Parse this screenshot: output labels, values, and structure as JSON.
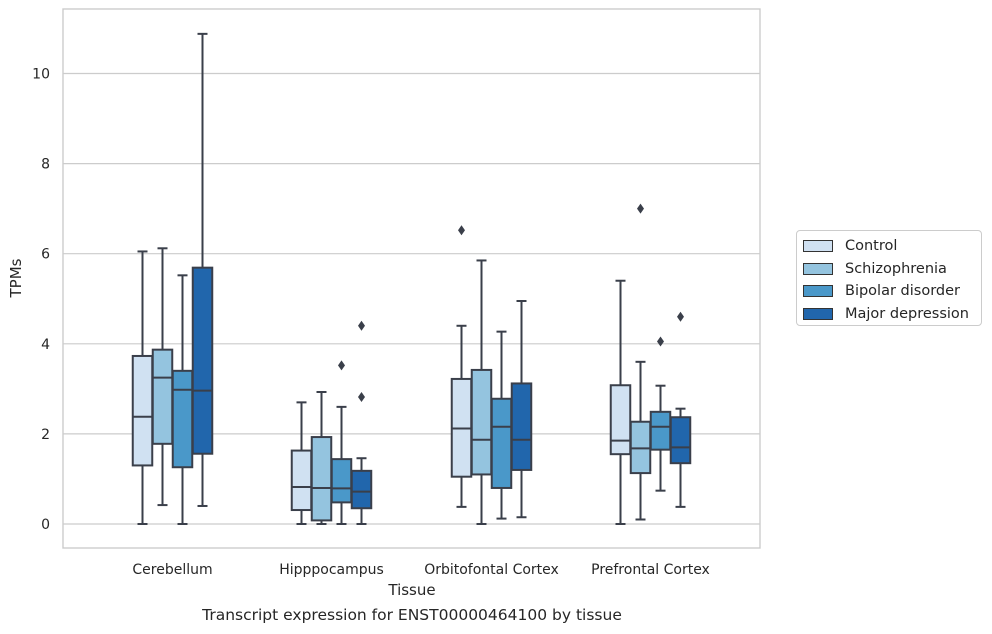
{
  "chart_data": {
    "type": "box",
    "title": "",
    "caption": "Transcript expression for ENST00000464100 by tissue",
    "xlabel": "Tissue",
    "ylabel": "TPMs",
    "ylim": [
      -0.5,
      11.4
    ],
    "yticks": [
      0,
      2,
      4,
      6,
      8,
      10
    ],
    "grid": "horizontal",
    "legend_position": "right",
    "categories": [
      "Cerebellum",
      "Hipppocampus",
      "Orbitofontal Cortex",
      "Prefrontal Cortex"
    ],
    "series": [
      {
        "name": "Control",
        "color": "#d0e1f2",
        "boxes": [
          {
            "whislo": 0.0,
            "q1": 1.3,
            "med": 2.38,
            "q3": 3.73,
            "whishi": 6.05,
            "fliers": []
          },
          {
            "whislo": 0.0,
            "q1": 0.31,
            "med": 0.82,
            "q3": 1.63,
            "whishi": 2.7,
            "fliers": []
          },
          {
            "whislo": 0.38,
            "q1": 1.05,
            "med": 2.12,
            "q3": 3.22,
            "whishi": 4.4,
            "fliers": [
              6.52
            ]
          },
          {
            "whislo": 0.0,
            "q1": 1.55,
            "med": 1.85,
            "q3": 3.08,
            "whishi": 5.4,
            "fliers": []
          }
        ]
      },
      {
        "name": "Schizophrenia",
        "color": "#94c4df",
        "boxes": [
          {
            "whislo": 0.42,
            "q1": 1.78,
            "med": 3.25,
            "q3": 3.87,
            "whishi": 6.12,
            "fliers": []
          },
          {
            "whislo": 0.0,
            "q1": 0.08,
            "med": 0.8,
            "q3": 1.93,
            "whishi": 2.93,
            "fliers": []
          },
          {
            "whislo": 0.0,
            "q1": 1.1,
            "med": 1.87,
            "q3": 3.42,
            "whishi": 5.85,
            "fliers": []
          },
          {
            "whislo": 0.1,
            "q1": 1.13,
            "med": 1.68,
            "q3": 2.27,
            "whishi": 3.6,
            "fliers": [
              7.0
            ]
          }
        ]
      },
      {
        "name": "Bipolar disorder",
        "color": "#4a98c9",
        "boxes": [
          {
            "whislo": 0.0,
            "q1": 1.26,
            "med": 2.98,
            "q3": 3.4,
            "whishi": 5.52,
            "fliers": []
          },
          {
            "whislo": 0.0,
            "q1": 0.48,
            "med": 0.79,
            "q3": 1.44,
            "whishi": 2.6,
            "fliers": [
              3.52
            ]
          },
          {
            "whislo": 0.12,
            "q1": 0.8,
            "med": 2.16,
            "q3": 2.78,
            "whishi": 4.27,
            "fliers": []
          },
          {
            "whislo": 0.74,
            "q1": 1.65,
            "med": 2.16,
            "q3": 2.49,
            "whishi": 3.07,
            "fliers": [
              4.05
            ]
          }
        ]
      },
      {
        "name": "Major depression",
        "color": "#2166ac",
        "boxes": [
          {
            "whislo": 0.4,
            "q1": 1.56,
            "med": 2.96,
            "q3": 5.69,
            "whishi": 10.88,
            "fliers": []
          },
          {
            "whislo": 0.0,
            "q1": 0.35,
            "med": 0.72,
            "q3": 1.18,
            "whishi": 1.46,
            "fliers": [
              2.82,
              4.4
            ]
          },
          {
            "whislo": 0.15,
            "q1": 1.2,
            "med": 1.87,
            "q3": 3.12,
            "whishi": 4.95,
            "fliers": []
          },
          {
            "whislo": 0.38,
            "q1": 1.35,
            "med": 1.7,
            "q3": 2.37,
            "whishi": 2.56,
            "fliers": [
              4.6
            ]
          }
        ]
      }
    ]
  }
}
